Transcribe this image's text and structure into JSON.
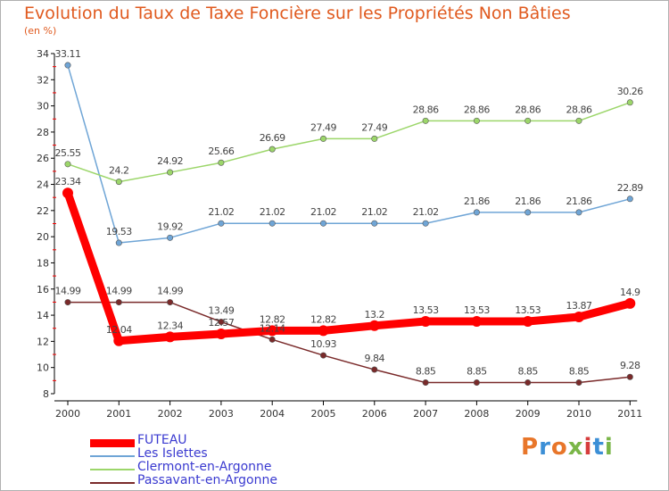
{
  "header": {
    "title": "Evolution du Taux de Taxe Foncière sur les Propriétés Non Bâties",
    "unit": "(en %)"
  },
  "logo": {
    "text": "Proxiti",
    "colors": [
      "#e8762a",
      "#3c8fd6",
      "#e8762a",
      "#7ab648",
      "#d63c3c",
      "#3c8fd6",
      "#7ab648"
    ]
  },
  "chart_data": {
    "type": "line",
    "title": "Evolution du Taux de Taxe Foncière sur les Propriétés Non Bâties",
    "ylabel": "(en %)",
    "xlabel": "",
    "ylim": [
      8,
      34
    ],
    "yticks": [
      8,
      10,
      12,
      14,
      16,
      18,
      20,
      22,
      24,
      26,
      28,
      30,
      32,
      34
    ],
    "categories": [
      "2000",
      "2001",
      "2002",
      "2003",
      "2004",
      "2005",
      "2006",
      "2007",
      "2008",
      "2009",
      "2010",
      "2011"
    ],
    "grid": false,
    "legend": "bottom-left",
    "series": [
      {
        "name": "FUTEAU",
        "color": "#ff0000",
        "bold": true,
        "values": [
          23.34,
          12.04,
          12.34,
          12.57,
          12.82,
          12.82,
          13.2,
          13.53,
          13.53,
          13.53,
          13.87,
          14.9
        ],
        "labels": [
          "23.34",
          "12.04",
          "12.34",
          "12.57",
          "12.82",
          "12.82",
          "13.2",
          "13.53",
          "13.53",
          "13.53",
          "13.87",
          "14.9"
        ]
      },
      {
        "name": "Les Islettes",
        "color": "#6fa5d6",
        "bold": false,
        "values": [
          33.11,
          19.53,
          19.92,
          21.02,
          21.02,
          21.02,
          21.02,
          21.02,
          21.86,
          21.86,
          21.86,
          22.89
        ],
        "labels": [
          "33.11",
          "19.53",
          "19.92",
          "21.02",
          "21.02",
          "21.02",
          "21.02",
          "21.02",
          "21.86",
          "21.86",
          "21.86",
          "22.89"
        ]
      },
      {
        "name": "Clermont-en-Argonne",
        "color": "#9cd66a",
        "bold": false,
        "values": [
          25.55,
          24.2,
          24.92,
          25.66,
          26.69,
          27.49,
          27.49,
          28.86,
          28.86,
          28.86,
          28.86,
          30.26
        ],
        "labels": [
          "25.55",
          "24.2",
          "24.92",
          "25.66",
          "26.69",
          "27.49",
          "27.49",
          "28.86",
          "28.86",
          "28.86",
          "28.86",
          "30.26"
        ]
      },
      {
        "name": "Passavant-en-Argonne",
        "color": "#7a2a2a",
        "bold": false,
        "values": [
          14.99,
          14.99,
          14.99,
          13.49,
          12.14,
          10.93,
          9.84,
          8.85,
          8.85,
          8.85,
          8.85,
          9.28
        ],
        "labels": [
          "14.99",
          "14.99",
          "14.99",
          "13.49",
          "12.14",
          "10.93",
          "9.84",
          "8.85",
          "8.85",
          "8.85",
          "8.85",
          "9.28"
        ]
      }
    ]
  }
}
